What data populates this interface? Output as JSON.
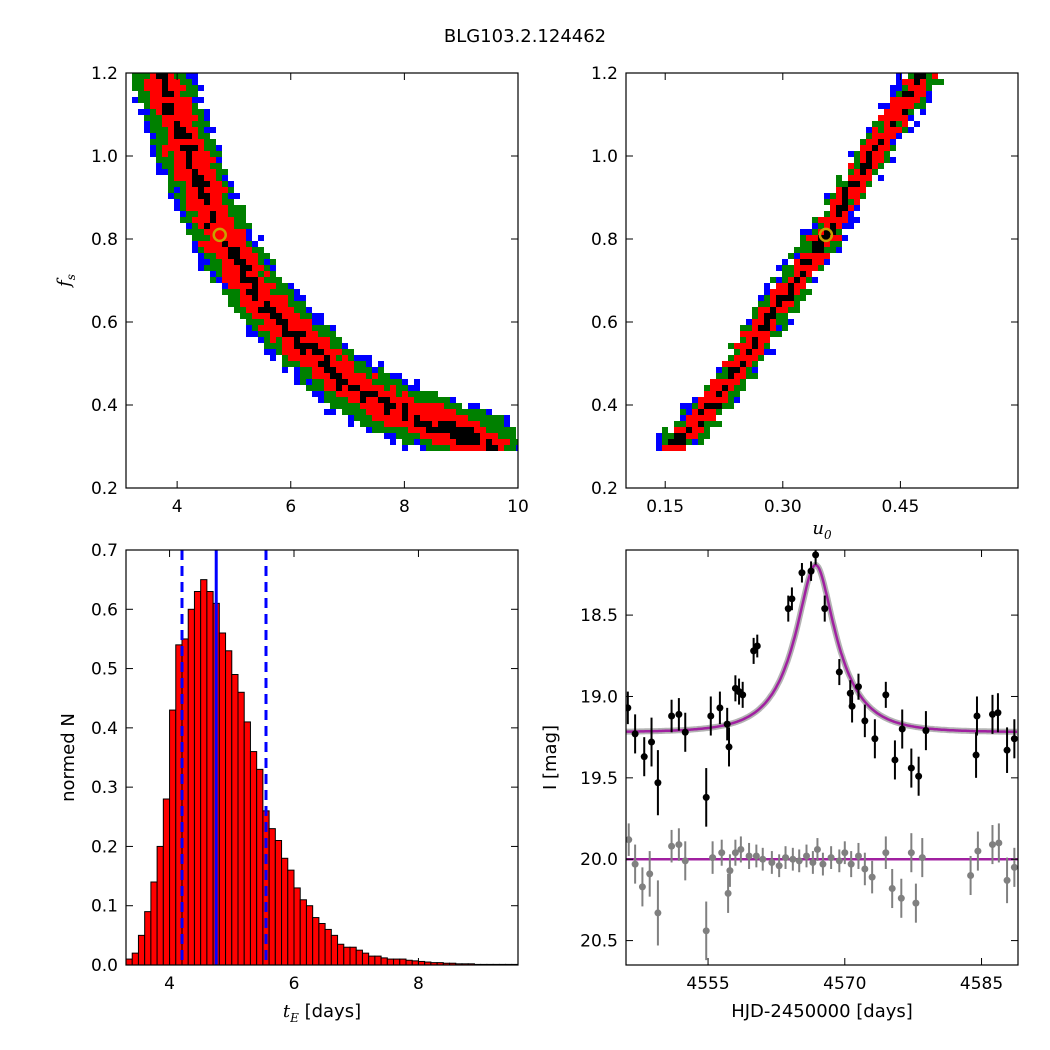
{
  "title": "BLG103.2.124462",
  "chart_data": [
    {
      "id": "tE_fs",
      "type": "heatmap",
      "xlabel": "",
      "ylabel_main": "f",
      "ylabel_sub": "s",
      "xlim": [
        3.1,
        10
      ],
      "ylim": [
        0.2,
        1.2
      ],
      "xticks": [
        4,
        6,
        8,
        10
      ],
      "yticks": [
        0.2,
        0.4,
        0.6,
        0.8,
        1.0,
        1.2
      ],
      "ytick_labels": [
        "0.2",
        "0.4",
        "0.6",
        "0.8",
        "1.0",
        "1.2"
      ],
      "levels": [
        "black",
        "red",
        "green",
        "blue"
      ],
      "ridge": [
        [
          3.7,
          1.2
        ],
        [
          4.2,
          1.0
        ],
        [
          4.75,
          0.81
        ],
        [
          5.5,
          0.65
        ],
        [
          6.2,
          0.55
        ],
        [
          7.0,
          0.45
        ],
        [
          8.0,
          0.38
        ],
        [
          9.0,
          0.33
        ],
        [
          9.5,
          0.3
        ]
      ],
      "best_fit": {
        "x": 4.75,
        "y": 0.81
      }
    },
    {
      "id": "u0_fs",
      "type": "heatmap",
      "xlabel_main": "u",
      "xlabel_sub": "0",
      "xlim": [
        0.1,
        0.6
      ],
      "ylim": [
        0.2,
        1.2
      ],
      "xticks": [
        0.15,
        0.3,
        0.45
      ],
      "xtick_labels": [
        "0.15",
        "0.30",
        "0.45"
      ],
      "yticks": [
        0.2,
        0.4,
        0.6,
        0.8,
        1.0,
        1.2
      ],
      "ytick_labels": [
        "0.2",
        "0.4",
        "0.6",
        "0.8",
        "1.0",
        "1.2"
      ],
      "levels": [
        "black",
        "red",
        "green",
        "blue"
      ],
      "ridge": [
        [
          0.16,
          0.3
        ],
        [
          0.22,
          0.42
        ],
        [
          0.28,
          0.6
        ],
        [
          0.355,
          0.81
        ],
        [
          0.42,
          1.02
        ],
        [
          0.48,
          1.2
        ]
      ],
      "best_fit": {
        "x": 0.355,
        "y": 0.81
      }
    },
    {
      "id": "tE_hist",
      "type": "bar",
      "xlabel_main": "t",
      "xlabel_sub": "E",
      "xlabel_rest": " [days]",
      "ylabel": "normed N",
      "xlim": [
        3.3,
        9.6
      ],
      "ylim": [
        0,
        0.7
      ],
      "xticks": [
        4,
        6,
        8
      ],
      "yticks": [
        0.0,
        0.1,
        0.2,
        0.3,
        0.4,
        0.5,
        0.6,
        0.7
      ],
      "ytick_labels": [
        "0.0",
        "0.1",
        "0.2",
        "0.3",
        "0.4",
        "0.5",
        "0.6",
        "0.7"
      ],
      "bin_width": 0.1,
      "bin_start": 3.3,
      "values": [
        0.01,
        0.02,
        0.05,
        0.09,
        0.14,
        0.2,
        0.28,
        0.43,
        0.54,
        0.55,
        0.6,
        0.63,
        0.65,
        0.63,
        0.61,
        0.56,
        0.53,
        0.49,
        0.46,
        0.41,
        0.36,
        0.33,
        0.26,
        0.23,
        0.21,
        0.18,
        0.16,
        0.13,
        0.11,
        0.1,
        0.08,
        0.07,
        0.06,
        0.05,
        0.035,
        0.03,
        0.03,
        0.025,
        0.02,
        0.015,
        0.015,
        0.012,
        0.01,
        0.01,
        0.01,
        0.008,
        0.007,
        0.006,
        0.005,
        0.004,
        0.004,
        0.003,
        0.003,
        0.002,
        0.002,
        0.002,
        0.001,
        0.001,
        0.001,
        0.001,
        0.001,
        0.001,
        0.001
      ],
      "median": 4.75,
      "lower": 4.2,
      "upper": 5.55,
      "bar_color": "#ff0000",
      "line_color": "#0000ff"
    },
    {
      "id": "lightcurve",
      "type": "scatter",
      "xlabel": "HJD-2450000 [days]",
      "ylabel": "I [mag]",
      "xlim": [
        4546,
        4589
      ],
      "ylim": [
        20.65,
        18.1
      ],
      "xticks": [
        4555,
        4570,
        4585
      ],
      "xtick_labels": [
        "4555",
        "4570",
        "4585"
      ],
      "yticks": [
        18.5,
        19.0,
        19.5,
        20.0,
        20.5
      ],
      "ytick_labels": [
        "18.5",
        "19.0",
        "19.5",
        "20.0",
        "20.5"
      ],
      "model": {
        "t0": 4566.8,
        "tE": 4.75,
        "u0": 0.355,
        "fs": 0.81,
        "base": 19.22,
        "color": "#a020a0"
      },
      "series": [
        {
          "color": "#000000",
          "points": [
            [
              4546.2,
              19.07,
              0.1
            ],
            [
              4547.0,
              19.23,
              0.12
            ],
            [
              4548.0,
              19.37,
              0.12
            ],
            [
              4548.8,
              19.28,
              0.15
            ],
            [
              4549.5,
              19.53,
              0.2
            ],
            [
              4551.0,
              19.12,
              0.1
            ],
            [
              4551.8,
              19.11,
              0.1
            ],
            [
              4552.5,
              19.22,
              0.12
            ],
            [
              4554.8,
              19.62,
              0.18
            ],
            [
              4555.3,
              19.12,
              0.12
            ],
            [
              4556.3,
              19.07,
              0.1
            ],
            [
              4557.1,
              19.17,
              0.1
            ],
            [
              4557.3,
              19.31,
              0.12
            ],
            [
              4558.0,
              18.95,
              0.08
            ],
            [
              4558.4,
              18.97,
              0.08
            ],
            [
              4558.8,
              18.99,
              0.08
            ],
            [
              4560.0,
              18.72,
              0.08
            ],
            [
              4560.4,
              18.69,
              0.07
            ],
            [
              4563.8,
              18.46,
              0.08
            ],
            [
              4564.2,
              18.4,
              0.07
            ],
            [
              4565.3,
              18.24,
              0.06
            ],
            [
              4566.3,
              18.23,
              0.06
            ],
            [
              4566.8,
              18.13,
              0.06
            ],
            [
              4567.8,
              18.46,
              0.08
            ],
            [
              4569.4,
              18.85,
              0.08
            ],
            [
              4570.6,
              18.98,
              0.08
            ],
            [
              4570.8,
              19.06,
              0.1
            ],
            [
              4571.5,
              18.94,
              0.08
            ],
            [
              4572.2,
              19.15,
              0.1
            ],
            [
              4573.3,
              19.26,
              0.12
            ],
            [
              4574.5,
              18.99,
              0.08
            ],
            [
              4575.5,
              19.39,
              0.12
            ],
            [
              4576.3,
              19.2,
              0.12
            ],
            [
              4577.3,
              19.44,
              0.12
            ],
            [
              4578.1,
              19.49,
              0.12
            ],
            [
              4578.9,
              19.21,
              0.12
            ],
            [
              4584.4,
              19.36,
              0.14
            ],
            [
              4584.5,
              19.12,
              0.12
            ],
            [
              4586.2,
              19.11,
              0.12
            ],
            [
              4586.8,
              19.1,
              0.12
            ],
            [
              4587.8,
              19.33,
              0.14
            ],
            [
              4588.6,
              19.26,
              0.12
            ]
          ]
        },
        {
          "color": "#808080",
          "points": [
            [
              4546.3,
              19.88,
              0.1
            ],
            [
              4547.0,
              20.03,
              0.12
            ],
            [
              4547.8,
              20.17,
              0.12
            ],
            [
              4548.6,
              20.09,
              0.14
            ],
            [
              4549.5,
              20.33,
              0.2
            ],
            [
              4551.0,
              19.92,
              0.1
            ],
            [
              4551.8,
              19.91,
              0.1
            ],
            [
              4552.5,
              20.01,
              0.12
            ],
            [
              4554.8,
              20.44,
              0.18
            ],
            [
              4555.5,
              19.99,
              0.1
            ],
            [
              4556.5,
              19.96,
              0.08
            ],
            [
              4557.2,
              20.21,
              0.12
            ],
            [
              4557.4,
              20.07,
              0.1
            ],
            [
              4558.0,
              19.96,
              0.08
            ],
            [
              4558.6,
              19.94,
              0.08
            ],
            [
              4559.5,
              19.98,
              0.08
            ],
            [
              4560.3,
              19.98,
              0.07
            ],
            [
              4561.0,
              20.0,
              0.07
            ],
            [
              4562.0,
              20.02,
              0.07
            ],
            [
              4562.8,
              20.04,
              0.07
            ],
            [
              4563.5,
              19.99,
              0.07
            ],
            [
              4564.3,
              20.0,
              0.07
            ],
            [
              4565.0,
              20.01,
              0.07
            ],
            [
              4565.8,
              19.98,
              0.07
            ],
            [
              4566.5,
              20.02,
              0.07
            ],
            [
              4567.0,
              19.94,
              0.07
            ],
            [
              4567.6,
              20.03,
              0.07
            ],
            [
              4568.5,
              19.99,
              0.07
            ],
            [
              4569.4,
              20.01,
              0.07
            ],
            [
              4570.0,
              19.96,
              0.07
            ],
            [
              4570.7,
              20.03,
              0.08
            ],
            [
              4571.5,
              19.98,
              0.08
            ],
            [
              4572.2,
              20.06,
              0.1
            ],
            [
              4573.0,
              20.11,
              0.1
            ],
            [
              4574.5,
              19.96,
              0.1
            ],
            [
              4575.2,
              20.18,
              0.12
            ],
            [
              4576.2,
              20.24,
              0.12
            ],
            [
              4577.3,
              19.96,
              0.12
            ],
            [
              4577.8,
              20.27,
              0.12
            ],
            [
              4578.5,
              19.99,
              0.12
            ],
            [
              4583.8,
              20.1,
              0.12
            ],
            [
              4584.6,
              19.95,
              0.12
            ],
            [
              4586.2,
              19.91,
              0.12
            ],
            [
              4586.9,
              19.9,
              0.12
            ],
            [
              4587.8,
              20.13,
              0.14
            ],
            [
              4588.6,
              20.05,
              0.12
            ]
          ]
        }
      ],
      "flat_model_mag": 20.0
    }
  ],
  "colors": {
    "black": "#000000",
    "red": "#ff0000",
    "green": "#008000",
    "blue": "#0000ff",
    "marker": "#c8a000"
  }
}
